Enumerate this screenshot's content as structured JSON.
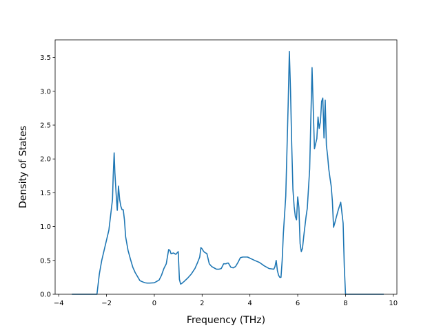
{
  "chart_data": {
    "type": "line",
    "title": "",
    "xlabel": "Frequency (THz)",
    "ylabel": "Density of States",
    "xlim": [
      -4.15,
      10.15
    ],
    "ylim": [
      0,
      3.76
    ],
    "xticks": [
      -4,
      -2,
      0,
      2,
      4,
      6,
      8,
      10
    ],
    "xtick_labels": [
      "−4",
      "−2",
      "0",
      "2",
      "4",
      "6",
      "8",
      "10"
    ],
    "yticks": [
      0,
      0.5,
      1.0,
      1.5,
      2.0,
      2.5,
      3.0,
      3.5
    ],
    "ytick_labels": [
      "0.0",
      "0.5",
      "1.0",
      "1.5",
      "2.0",
      "2.5",
      "3.0",
      "3.5"
    ],
    "grid": false,
    "legend": false,
    "series": [
      {
        "color": "#1f77b4",
        "x": [
          -3.45,
          -2.4,
          -2.3,
          -2.2,
          -2.1,
          -2.0,
          -1.9,
          -1.8,
          -1.75,
          -1.72,
          -1.68,
          -1.65,
          -1.6,
          -1.55,
          -1.5,
          -1.45,
          -1.4,
          -1.35,
          -1.3,
          -1.25,
          -1.2,
          -1.1,
          -1.0,
          -0.9,
          -0.8,
          -0.6,
          -0.4,
          -0.3,
          -0.2,
          0.0,
          0.2,
          0.3,
          0.4,
          0.5,
          0.6,
          0.65,
          0.7,
          0.8,
          0.9,
          1.0,
          1.05,
          1.1,
          1.15,
          1.25,
          1.4,
          1.55,
          1.7,
          1.8,
          1.9,
          1.95,
          2.0,
          2.05,
          2.1,
          2.2,
          2.3,
          2.4,
          2.5,
          2.6,
          2.7,
          2.8,
          2.9,
          3.0,
          3.05,
          3.1,
          3.15,
          3.2,
          3.3,
          3.4,
          3.5,
          3.6,
          3.7,
          3.9,
          4.2,
          4.4,
          4.6,
          4.8,
          5.0,
          5.05,
          5.1,
          5.15,
          5.2,
          5.25,
          5.3,
          5.35,
          5.4,
          5.5,
          5.6,
          5.65,
          5.7,
          5.75,
          5.8,
          5.85,
          5.9,
          5.95,
          6.0,
          6.05,
          6.1,
          6.15,
          6.2,
          6.25,
          6.3,
          6.35,
          6.4,
          6.5,
          6.6,
          6.7,
          6.8,
          6.85,
          6.9,
          6.95,
          7.0,
          7.05,
          7.1,
          7.15,
          7.2,
          7.25,
          7.3,
          7.35,
          7.4,
          7.45,
          7.5,
          7.55,
          7.6,
          7.7,
          7.8,
          7.9,
          7.95,
          8.0,
          8.05,
          8.1,
          8.15,
          8.2,
          8.25,
          8.3,
          8.35,
          8.4,
          8.45,
          8.5,
          8.55,
          9.6
        ],
        "y": [
          0.0,
          0.0,
          0.3,
          0.5,
          0.65,
          0.8,
          0.95,
          1.25,
          1.4,
          1.75,
          2.09,
          1.8,
          1.5,
          1.24,
          1.6,
          1.4,
          1.3,
          1.25,
          1.25,
          1.1,
          0.85,
          0.65,
          0.52,
          0.4,
          0.32,
          0.2,
          0.17,
          0.165,
          0.165,
          0.17,
          0.21,
          0.28,
          0.38,
          0.45,
          0.66,
          0.65,
          0.6,
          0.61,
          0.59,
          0.63,
          0.22,
          0.15,
          0.16,
          0.19,
          0.24,
          0.3,
          0.38,
          0.46,
          0.55,
          0.69,
          0.67,
          0.64,
          0.62,
          0.6,
          0.45,
          0.41,
          0.39,
          0.37,
          0.37,
          0.38,
          0.45,
          0.45,
          0.46,
          0.46,
          0.43,
          0.4,
          0.39,
          0.41,
          0.47,
          0.54,
          0.55,
          0.55,
          0.5,
          0.47,
          0.42,
          0.38,
          0.37,
          0.41,
          0.5,
          0.35,
          0.28,
          0.25,
          0.25,
          0.5,
          0.9,
          1.45,
          2.8,
          3.59,
          3.0,
          2.2,
          1.55,
          1.3,
          1.15,
          1.1,
          1.44,
          1.28,
          0.75,
          0.63,
          0.68,
          0.85,
          1.0,
          1.15,
          1.27,
          1.85,
          3.35,
          2.15,
          2.3,
          2.62,
          2.45,
          2.55,
          2.85,
          2.9,
          2.31,
          2.87,
          2.2,
          2.05,
          1.85,
          1.72,
          1.6,
          1.38,
          0.99,
          1.05,
          1.12,
          1.25,
          1.36,
          1.05,
          0.4,
          0.0,
          0.0,
          0.0,
          0.0,
          0.0,
          0.0,
          0.0,
          0.0,
          0.0,
          0.0,
          0.0,
          0.0,
          0.0
        ],
        "x_note": "",
        "y_note": ""
      }
    ]
  }
}
